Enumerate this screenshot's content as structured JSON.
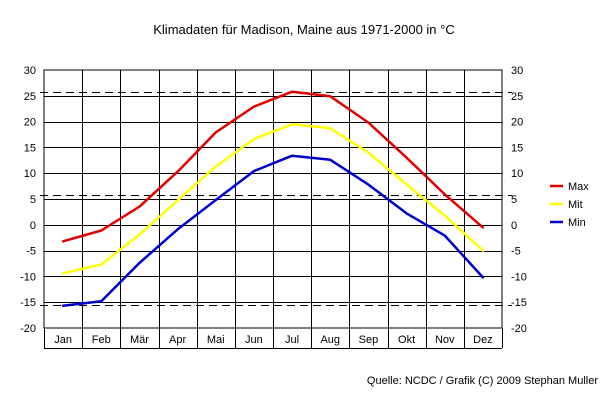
{
  "chart_data": {
    "type": "line",
    "title": "Klimadaten für Madison, Maine aus 1971-2000 in °C",
    "categories": [
      "Jan",
      "Feb",
      "Mär",
      "Apr",
      "Mai",
      "Jun",
      "Jul",
      "Aug",
      "Sep",
      "Okt",
      "Nov",
      "Dez"
    ],
    "ylim": [
      -20,
      30
    ],
    "yticks": [
      "30",
      "25",
      "20",
      "15",
      "10",
      "5",
      "0",
      "-5",
      "-10",
      "-15",
      "-20"
    ],
    "grid": true,
    "reference_lines": [
      25.8,
      5.8,
      -15.5
    ],
    "series": [
      {
        "name": "Max",
        "color": "#e00000",
        "values": [
          -3.2,
          -1.1,
          3.5,
          10.3,
          17.9,
          22.9,
          25.8,
          24.9,
          19.8,
          13.0,
          5.9,
          -0.5
        ]
      },
      {
        "name": "Mit",
        "color": "#ffff00",
        "values": [
          -9.4,
          -7.7,
          -1.9,
          4.7,
          11.3,
          16.6,
          19.5,
          18.7,
          14.0,
          7.8,
          1.8,
          -5.0
        ]
      },
      {
        "name": "Min",
        "color": "#0000cc",
        "values": [
          -15.7,
          -14.8,
          -7.4,
          -0.9,
          4.8,
          10.4,
          13.4,
          12.6,
          7.8,
          2.2,
          -2.1,
          -10.2
        ]
      }
    ],
    "legend_position": "right"
  },
  "source_text": "Quelle: NCDC / Grafik (C) 2009 Stephan Muller"
}
